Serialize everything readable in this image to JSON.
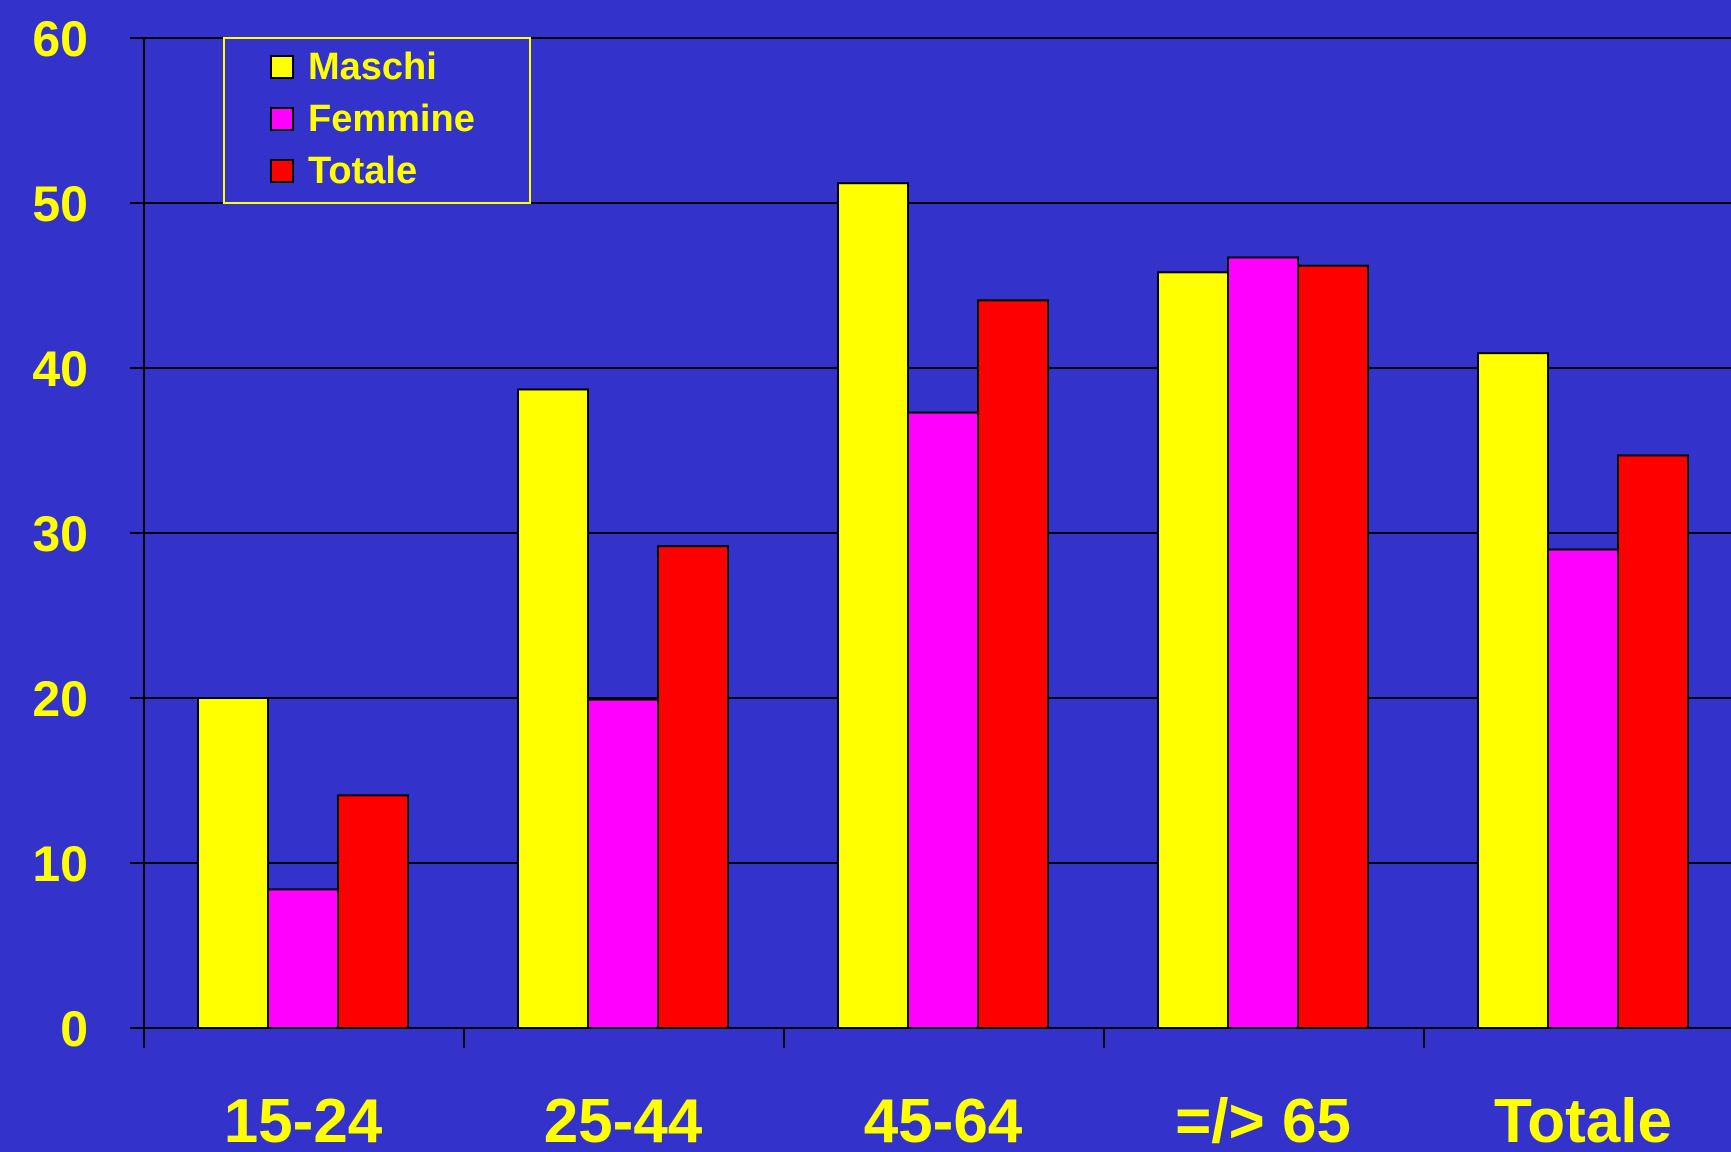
{
  "chart_data": {
    "type": "bar",
    "title": "",
    "xlabel": "",
    "ylabel": "",
    "categories": [
      "15-24",
      "25-44",
      "45-64",
      "=/> 65",
      "Totale"
    ],
    "series": [
      {
        "name": "Maschi",
        "color": "#ffff00",
        "values": [
          20.0,
          38.7,
          51.2,
          45.8,
          40.9
        ]
      },
      {
        "name": "Femmine",
        "color": "#ff00ff",
        "values": [
          8.4,
          19.9,
          37.3,
          46.7,
          29.0
        ]
      },
      {
        "name": "Totale",
        "color": "#ff0000",
        "values": [
          14.1,
          29.2,
          44.1,
          46.2,
          34.7
        ]
      }
    ],
    "ylim": [
      0,
      60
    ],
    "yticks": [
      "0",
      "10",
      "20",
      "30",
      "40",
      "50",
      "60"
    ],
    "grid": true,
    "legend_position": "top-left",
    "background_color": "#3333cc",
    "text_color": "#ffff00"
  }
}
